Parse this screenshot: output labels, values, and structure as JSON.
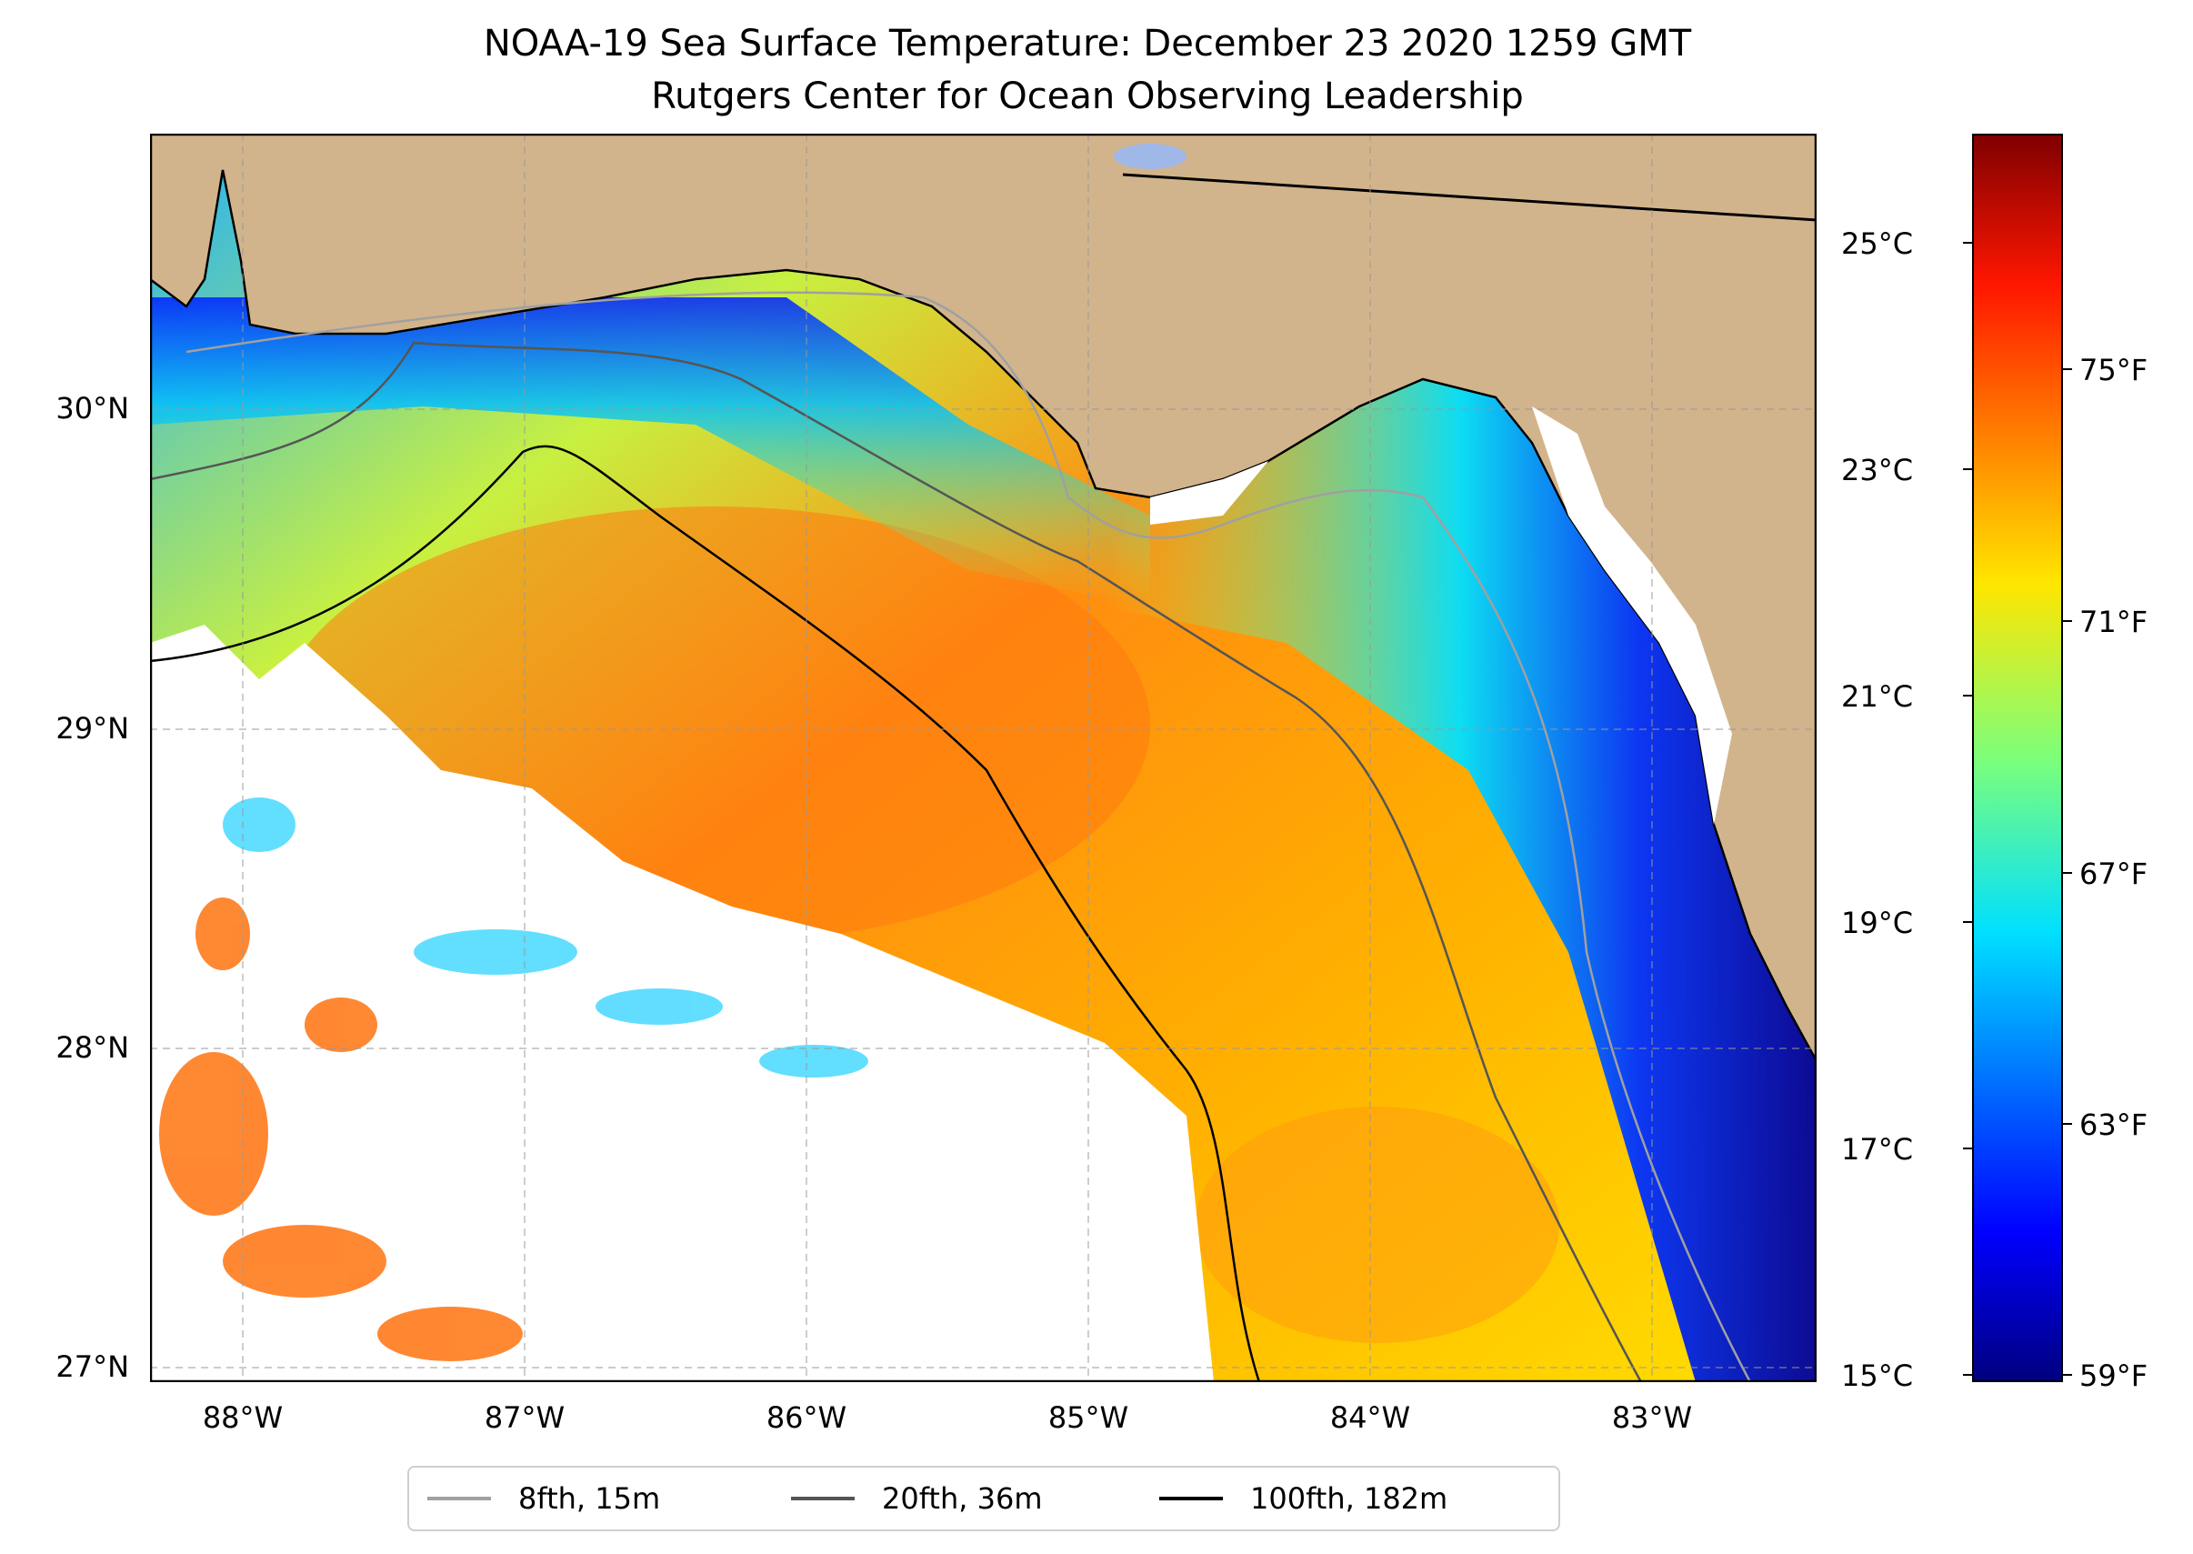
{
  "title": {
    "line1": "NOAA-19 Sea Surface Temperature: December 23 2020 1259 GMT",
    "line2": "Rutgers Center for Ocean Observing Leadership"
  },
  "map": {
    "land_color": "#d2b48c",
    "coast_color": "#000000",
    "no_data_color": "#ffffff",
    "lat_labels": [
      "30°N",
      "29°N",
      "28°N",
      "27°N"
    ],
    "lon_labels": [
      "88°W",
      "87°W",
      "86°W",
      "85°W",
      "84°W",
      "83°W"
    ]
  },
  "colorbar": {
    "colormap": "jet",
    "celsius_labels": [
      "25°C",
      "23°C",
      "21°C",
      "19°C",
      "17°C",
      "15°C"
    ],
    "fahrenheit_labels": [
      "75°F",
      "71°F",
      "67°F",
      "63°F",
      "59°F"
    ],
    "range_celsius": [
      15,
      26
    ]
  },
  "legend": {
    "items": [
      {
        "label": "8fth, 15m",
        "color": "#a0a0a0"
      },
      {
        "label": "20fth, 36m",
        "color": "#555555"
      },
      {
        "label": "100fth, 182m",
        "color": "#000000"
      }
    ]
  }
}
